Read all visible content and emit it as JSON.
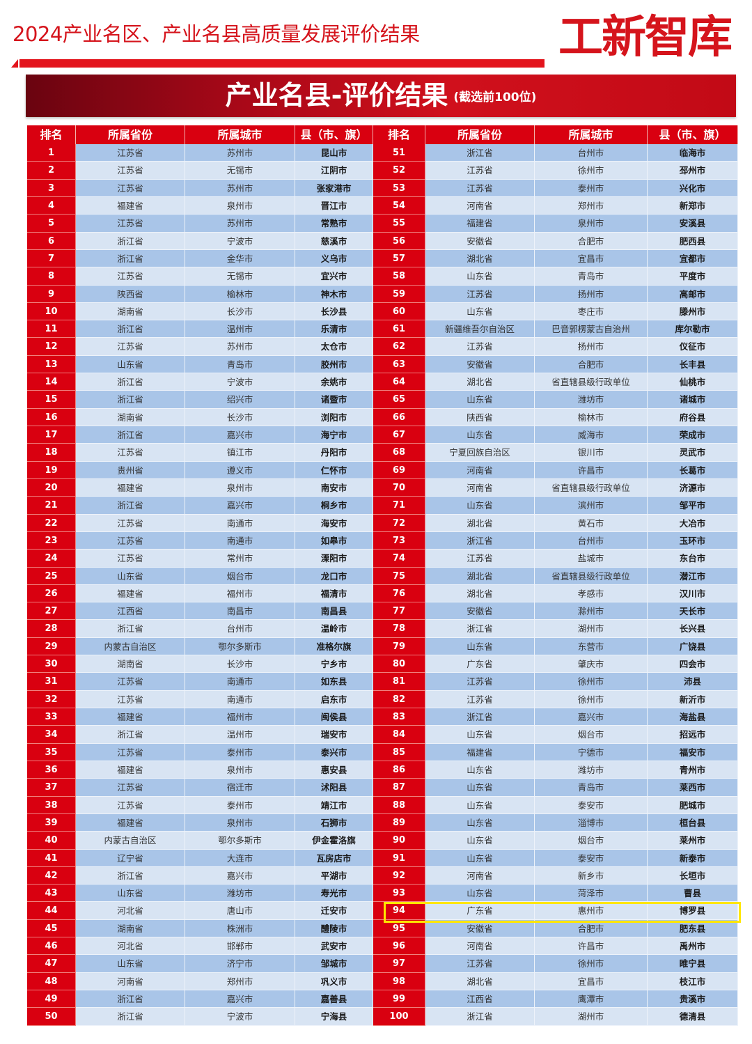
{
  "header": {
    "title": "2024产业名区、产业名县高质量发展评价结果",
    "logo_text": "工新智库"
  },
  "banner": {
    "title": "产业名县-评价结果",
    "subtitle": "(截选前100位)"
  },
  "colors": {
    "brand_red": "#d5141c",
    "rank_cell": "#d90010",
    "row_dark": "#a9c5e8",
    "row_light": "#d8e4f3",
    "highlight": "#ffe600"
  },
  "table": {
    "columns": [
      "排名",
      "所属省份",
      "所属城市",
      "县（市、旗）",
      "排名",
      "所属省份",
      "所属城市",
      "县（市、旗）"
    ],
    "highlighted_rank": 94,
    "rows": [
      [
        "1",
        "江苏省",
        "苏州市",
        "昆山市"
      ],
      [
        "2",
        "江苏省",
        "无锡市",
        "江阴市"
      ],
      [
        "3",
        "江苏省",
        "苏州市",
        "张家港市"
      ],
      [
        "4",
        "福建省",
        "泉州市",
        "晋江市"
      ],
      [
        "5",
        "江苏省",
        "苏州市",
        "常熟市"
      ],
      [
        "6",
        "浙江省",
        "宁波市",
        "慈溪市"
      ],
      [
        "7",
        "浙江省",
        "金华市",
        "义乌市"
      ],
      [
        "8",
        "江苏省",
        "无锡市",
        "宜兴市"
      ],
      [
        "9",
        "陕西省",
        "榆林市",
        "神木市"
      ],
      [
        "10",
        "湖南省",
        "长沙市",
        "长沙县"
      ],
      [
        "11",
        "浙江省",
        "温州市",
        "乐清市"
      ],
      [
        "12",
        "江苏省",
        "苏州市",
        "太仓市"
      ],
      [
        "13",
        "山东省",
        "青岛市",
        "胶州市"
      ],
      [
        "14",
        "浙江省",
        "宁波市",
        "余姚市"
      ],
      [
        "15",
        "浙江省",
        "绍兴市",
        "诸暨市"
      ],
      [
        "16",
        "湖南省",
        "长沙市",
        "浏阳市"
      ],
      [
        "17",
        "浙江省",
        "嘉兴市",
        "海宁市"
      ],
      [
        "18",
        "江苏省",
        "镇江市",
        "丹阳市"
      ],
      [
        "19",
        "贵州省",
        "遵义市",
        "仁怀市"
      ],
      [
        "20",
        "福建省",
        "泉州市",
        "南安市"
      ],
      [
        "21",
        "浙江省",
        "嘉兴市",
        "桐乡市"
      ],
      [
        "22",
        "江苏省",
        "南通市",
        "海安市"
      ],
      [
        "23",
        "江苏省",
        "南通市",
        "如皋市"
      ],
      [
        "24",
        "江苏省",
        "常州市",
        "溧阳市"
      ],
      [
        "25",
        "山东省",
        "烟台市",
        "龙口市"
      ],
      [
        "26",
        "福建省",
        "福州市",
        "福清市"
      ],
      [
        "27",
        "江西省",
        "南昌市",
        "南昌县"
      ],
      [
        "28",
        "浙江省",
        "台州市",
        "温岭市"
      ],
      [
        "29",
        "内蒙古自治区",
        "鄂尔多斯市",
        "准格尔旗"
      ],
      [
        "30",
        "湖南省",
        "长沙市",
        "宁乡市"
      ],
      [
        "31",
        "江苏省",
        "南通市",
        "如东县"
      ],
      [
        "32",
        "江苏省",
        "南通市",
        "启东市"
      ],
      [
        "33",
        "福建省",
        "福州市",
        "闽侯县"
      ],
      [
        "34",
        "浙江省",
        "温州市",
        "瑞安市"
      ],
      [
        "35",
        "江苏省",
        "泰州市",
        "泰兴市"
      ],
      [
        "36",
        "福建省",
        "泉州市",
        "惠安县"
      ],
      [
        "37",
        "江苏省",
        "宿迁市",
        "沭阳县"
      ],
      [
        "38",
        "江苏省",
        "泰州市",
        "靖江市"
      ],
      [
        "39",
        "福建省",
        "泉州市",
        "石狮市"
      ],
      [
        "40",
        "内蒙古自治区",
        "鄂尔多斯市",
        "伊金霍洛旗"
      ],
      [
        "41",
        "辽宁省",
        "大连市",
        "瓦房店市"
      ],
      [
        "42",
        "浙江省",
        "嘉兴市",
        "平湖市"
      ],
      [
        "43",
        "山东省",
        "潍坊市",
        "寿光市"
      ],
      [
        "44",
        "河北省",
        "唐山市",
        "迁安市"
      ],
      [
        "45",
        "湖南省",
        "株洲市",
        "醴陵市"
      ],
      [
        "46",
        "河北省",
        "邯郸市",
        "武安市"
      ],
      [
        "47",
        "山东省",
        "济宁市",
        "邹城市"
      ],
      [
        "48",
        "河南省",
        "郑州市",
        "巩义市"
      ],
      [
        "49",
        "浙江省",
        "嘉兴市",
        "嘉善县"
      ],
      [
        "50",
        "浙江省",
        "宁波市",
        "宁海县"
      ],
      [
        "51",
        "浙江省",
        "台州市",
        "临海市"
      ],
      [
        "52",
        "江苏省",
        "徐州市",
        "邳州市"
      ],
      [
        "53",
        "江苏省",
        "泰州市",
        "兴化市"
      ],
      [
        "54",
        "河南省",
        "郑州市",
        "新郑市"
      ],
      [
        "55",
        "福建省",
        "泉州市",
        "安溪县"
      ],
      [
        "56",
        "安徽省",
        "合肥市",
        "肥西县"
      ],
      [
        "57",
        "湖北省",
        "宜昌市",
        "宜都市"
      ],
      [
        "58",
        "山东省",
        "青岛市",
        "平度市"
      ],
      [
        "59",
        "江苏省",
        "扬州市",
        "高邮市"
      ],
      [
        "60",
        "山东省",
        "枣庄市",
        "滕州市"
      ],
      [
        "61",
        "新疆维吾尔自治区",
        "巴音郭楞蒙古自治州",
        "库尔勒市"
      ],
      [
        "62",
        "江苏省",
        "扬州市",
        "仪征市"
      ],
      [
        "63",
        "安徽省",
        "合肥市",
        "长丰县"
      ],
      [
        "64",
        "湖北省",
        "省直辖县级行政单位",
        "仙桃市"
      ],
      [
        "65",
        "山东省",
        "潍坊市",
        "诸城市"
      ],
      [
        "66",
        "陕西省",
        "榆林市",
        "府谷县"
      ],
      [
        "67",
        "山东省",
        "威海市",
        "荣成市"
      ],
      [
        "68",
        "宁夏回族自治区",
        "银川市",
        "灵武市"
      ],
      [
        "69",
        "河南省",
        "许昌市",
        "长葛市"
      ],
      [
        "70",
        "河南省",
        "省直辖县级行政单位",
        "济源市"
      ],
      [
        "71",
        "山东省",
        "滨州市",
        "邹平市"
      ],
      [
        "72",
        "湖北省",
        "黄石市",
        "大冶市"
      ],
      [
        "73",
        "浙江省",
        "台州市",
        "玉环市"
      ],
      [
        "74",
        "江苏省",
        "盐城市",
        "东台市"
      ],
      [
        "75",
        "湖北省",
        "省直辖县级行政单位",
        "潜江市"
      ],
      [
        "76",
        "湖北省",
        "孝感市",
        "汉川市"
      ],
      [
        "77",
        "安徽省",
        "滁州市",
        "天长市"
      ],
      [
        "78",
        "浙江省",
        "湖州市",
        "长兴县"
      ],
      [
        "79",
        "山东省",
        "东营市",
        "广饶县"
      ],
      [
        "80",
        "广东省",
        "肇庆市",
        "四会市"
      ],
      [
        "81",
        "江苏省",
        "徐州市",
        "沛县"
      ],
      [
        "82",
        "江苏省",
        "徐州市",
        "新沂市"
      ],
      [
        "83",
        "浙江省",
        "嘉兴市",
        "海盐县"
      ],
      [
        "84",
        "山东省",
        "烟台市",
        "招远市"
      ],
      [
        "85",
        "福建省",
        "宁德市",
        "福安市"
      ],
      [
        "86",
        "山东省",
        "潍坊市",
        "青州市"
      ],
      [
        "87",
        "山东省",
        "青岛市",
        "莱西市"
      ],
      [
        "88",
        "山东省",
        "泰安市",
        "肥城市"
      ],
      [
        "89",
        "山东省",
        "淄博市",
        "桓台县"
      ],
      [
        "90",
        "山东省",
        "烟台市",
        "莱州市"
      ],
      [
        "91",
        "山东省",
        "泰安市",
        "新泰市"
      ],
      [
        "92",
        "河南省",
        "新乡市",
        "长垣市"
      ],
      [
        "93",
        "山东省",
        "菏泽市",
        "曹县"
      ],
      [
        "94",
        "广东省",
        "惠州市",
        "博罗县"
      ],
      [
        "95",
        "安徽省",
        "合肥市",
        "肥东县"
      ],
      [
        "96",
        "河南省",
        "许昌市",
        "禹州市"
      ],
      [
        "97",
        "江苏省",
        "徐州市",
        "睢宁县"
      ],
      [
        "98",
        "湖北省",
        "宜昌市",
        "枝江市"
      ],
      [
        "99",
        "江西省",
        "鹰潭市",
        "贵溪市"
      ],
      [
        "100",
        "浙江省",
        "湖州市",
        "德清县"
      ]
    ]
  }
}
